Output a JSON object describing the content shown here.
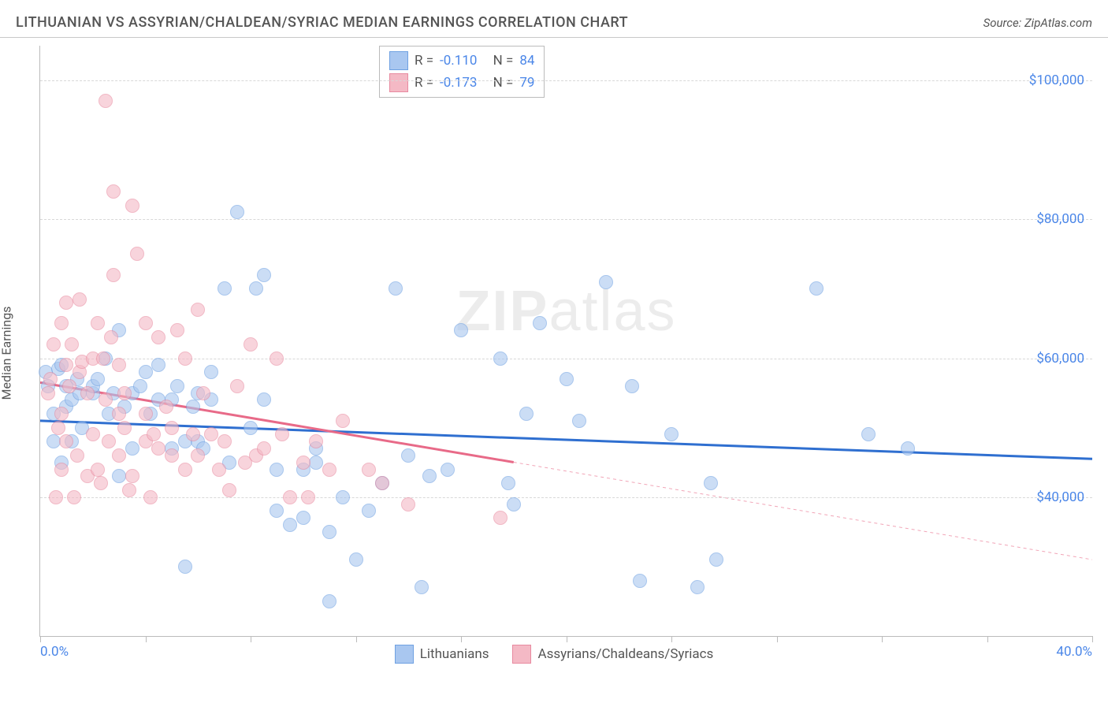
{
  "title": "LITHUANIAN VS ASSYRIAN/CHALDEAN/SYRIAC MEDIAN EARNINGS CORRELATION CHART",
  "source": "Source: ZipAtlas.com",
  "ylabel": "Median Earnings",
  "watermark_a": "ZIP",
  "watermark_b": "atlas",
  "chart": {
    "type": "scatter",
    "xlim": [
      0,
      40
    ],
    "ylim": [
      20000,
      105000
    ],
    "xticks_pct": [
      0,
      10,
      20,
      30,
      40,
      50,
      60,
      70,
      80,
      90,
      100
    ],
    "xrange_labels": {
      "min": "0.0%",
      "max": "40.0%"
    },
    "y_gridlines": [
      {
        "value": 40000,
        "label": "$40,000"
      },
      {
        "value": 60000,
        "label": "$60,000"
      },
      {
        "value": 80000,
        "label": "$80,000"
      },
      {
        "value": 100000,
        "label": "$100,000"
      }
    ],
    "axis_color": "#bbbbbb",
    "grid_color": "#d8d8d8",
    "tick_label_color": "#4a86e8",
    "background_color": "#ffffff"
  },
  "series": [
    {
      "name": "Lithuanians",
      "marker_radius": 8,
      "fill": "#a9c7f0",
      "stroke": "#6fa1e2",
      "fill_opacity": 0.6,
      "trend": {
        "x0": 0,
        "y0": 51000,
        "x1": 40,
        "y1": 45500,
        "solid_until_x": 40,
        "color": "#2f6fd0",
        "width": 3
      },
      "stats": {
        "R_label": "R =",
        "R": "-0.110",
        "N_label": "N =",
        "N": "84"
      },
      "points": [
        [
          0.2,
          58000
        ],
        [
          0.3,
          56000
        ],
        [
          0.5,
          48000
        ],
        [
          0.5,
          52000
        ],
        [
          0.7,
          58500
        ],
        [
          0.8,
          59000
        ],
        [
          0.8,
          45000
        ],
        [
          1.0,
          56000
        ],
        [
          1.0,
          53000
        ],
        [
          1.2,
          54000
        ],
        [
          1.2,
          48000
        ],
        [
          1.4,
          57000
        ],
        [
          1.5,
          55000
        ],
        [
          1.6,
          50000
        ],
        [
          2.0,
          55000
        ],
        [
          2.0,
          56000
        ],
        [
          2.2,
          57000
        ],
        [
          2.5,
          60000
        ],
        [
          2.6,
          52000
        ],
        [
          2.8,
          55000
        ],
        [
          3.0,
          64000
        ],
        [
          3.0,
          43000
        ],
        [
          3.2,
          53000
        ],
        [
          3.5,
          55000
        ],
        [
          3.5,
          47000
        ],
        [
          3.8,
          56000
        ],
        [
          4.0,
          58000
        ],
        [
          4.2,
          52000
        ],
        [
          4.5,
          54000
        ],
        [
          4.5,
          59000
        ],
        [
          5.0,
          54000
        ],
        [
          5.0,
          47000
        ],
        [
          5.2,
          56000
        ],
        [
          5.5,
          30000
        ],
        [
          5.5,
          48000
        ],
        [
          5.8,
          53000
        ],
        [
          6.0,
          55000
        ],
        [
          6.0,
          48000
        ],
        [
          6.2,
          47000
        ],
        [
          6.5,
          54000
        ],
        [
          6.5,
          58000
        ],
        [
          7.0,
          70000
        ],
        [
          7.2,
          45000
        ],
        [
          7.5,
          81000
        ],
        [
          8.0,
          50000
        ],
        [
          8.2,
          70000
        ],
        [
          8.5,
          72000
        ],
        [
          8.5,
          54000
        ],
        [
          9.0,
          44000
        ],
        [
          9.0,
          38000
        ],
        [
          9.5,
          36000
        ],
        [
          10.0,
          44000
        ],
        [
          10.0,
          37000
        ],
        [
          10.5,
          45000
        ],
        [
          10.5,
          47000
        ],
        [
          11.0,
          25000
        ],
        [
          11.0,
          35000
        ],
        [
          11.5,
          40000
        ],
        [
          12.0,
          31000
        ],
        [
          12.5,
          38000
        ],
        [
          13.0,
          42000
        ],
        [
          13.5,
          70000
        ],
        [
          14.0,
          46000
        ],
        [
          14.5,
          27000
        ],
        [
          14.8,
          43000
        ],
        [
          15.5,
          44000
        ],
        [
          16.0,
          64000
        ],
        [
          17.5,
          60000
        ],
        [
          17.8,
          42000
        ],
        [
          18.0,
          39000
        ],
        [
          18.5,
          52000
        ],
        [
          19.0,
          65000
        ],
        [
          20.0,
          57000
        ],
        [
          20.5,
          51000
        ],
        [
          21.5,
          71000
        ],
        [
          22.5,
          56000
        ],
        [
          22.8,
          28000
        ],
        [
          24.0,
          49000
        ],
        [
          25.0,
          27000
        ],
        [
          25.5,
          42000
        ],
        [
          25.7,
          31000
        ],
        [
          29.5,
          70000
        ],
        [
          31.5,
          49000
        ],
        [
          33.0,
          47000
        ]
      ]
    },
    {
      "name": "Assyrians/Chaldeans/Syriacs",
      "marker_radius": 8,
      "fill": "#f4b9c5",
      "stroke": "#e88aa0",
      "fill_opacity": 0.6,
      "trend": {
        "x0": 0,
        "y0": 56500,
        "x1": 40,
        "y1": 31000,
        "solid_until_x": 18,
        "color": "#e86a88",
        "width": 3
      },
      "stats": {
        "R_label": "R =",
        "R": "-0.173",
        "N_label": "N =",
        "N": "79"
      },
      "points": [
        [
          0.3,
          55000
        ],
        [
          0.4,
          57000
        ],
        [
          0.5,
          62000
        ],
        [
          0.6,
          40000
        ],
        [
          0.7,
          50000
        ],
        [
          0.8,
          44000
        ],
        [
          0.8,
          52000
        ],
        [
          0.8,
          65000
        ],
        [
          1.0,
          59000
        ],
        [
          1.0,
          48000
        ],
        [
          1.0,
          68000
        ],
        [
          1.1,
          56000
        ],
        [
          1.2,
          62000
        ],
        [
          1.3,
          40000
        ],
        [
          1.4,
          46000
        ],
        [
          1.5,
          58000
        ],
        [
          1.5,
          68500
        ],
        [
          1.6,
          59500
        ],
        [
          1.8,
          55000
        ],
        [
          1.8,
          43000
        ],
        [
          2.0,
          60000
        ],
        [
          2.0,
          49000
        ],
        [
          2.2,
          44000
        ],
        [
          2.2,
          65000
        ],
        [
          2.3,
          42000
        ],
        [
          2.4,
          60000
        ],
        [
          2.5,
          97000
        ],
        [
          2.5,
          54000
        ],
        [
          2.6,
          48000
        ],
        [
          2.7,
          63000
        ],
        [
          2.8,
          72000
        ],
        [
          2.8,
          84000
        ],
        [
          3.0,
          52000
        ],
        [
          3.0,
          59000
        ],
        [
          3.0,
          46000
        ],
        [
          3.2,
          55000
        ],
        [
          3.2,
          50000
        ],
        [
          3.4,
          41000
        ],
        [
          3.5,
          82000
        ],
        [
          3.5,
          43000
        ],
        [
          3.7,
          75000
        ],
        [
          4.0,
          48000
        ],
        [
          4.0,
          65000
        ],
        [
          4.0,
          52000
        ],
        [
          4.2,
          40000
        ],
        [
          4.3,
          49000
        ],
        [
          4.5,
          47000
        ],
        [
          4.5,
          63000
        ],
        [
          4.8,
          53000
        ],
        [
          5.0,
          50000
        ],
        [
          5.0,
          46000
        ],
        [
          5.2,
          64000
        ],
        [
          5.5,
          44000
        ],
        [
          5.5,
          60000
        ],
        [
          5.8,
          49000
        ],
        [
          6.0,
          46000
        ],
        [
          6.0,
          67000
        ],
        [
          6.2,
          55000
        ],
        [
          6.5,
          49000
        ],
        [
          6.8,
          44000
        ],
        [
          7.0,
          48000
        ],
        [
          7.2,
          41000
        ],
        [
          7.5,
          56000
        ],
        [
          7.8,
          45000
        ],
        [
          8.0,
          62000
        ],
        [
          8.2,
          46000
        ],
        [
          8.5,
          47000
        ],
        [
          9.0,
          60000
        ],
        [
          9.2,
          49000
        ],
        [
          9.5,
          40000
        ],
        [
          10.0,
          45000
        ],
        [
          10.2,
          40000
        ],
        [
          10.5,
          48000
        ],
        [
          11.0,
          44000
        ],
        [
          11.5,
          51000
        ],
        [
          12.5,
          44000
        ],
        [
          13.0,
          42000
        ],
        [
          14.0,
          39000
        ],
        [
          17.5,
          37000
        ]
      ]
    }
  ],
  "legend": {
    "items": [
      {
        "label": "Lithuanians",
        "fill": "#a9c7f0",
        "stroke": "#6fa1e2"
      },
      {
        "label": "Assyrians/Chaldeans/Syriacs",
        "fill": "#f4b9c5",
        "stroke": "#e88aa0"
      }
    ]
  }
}
